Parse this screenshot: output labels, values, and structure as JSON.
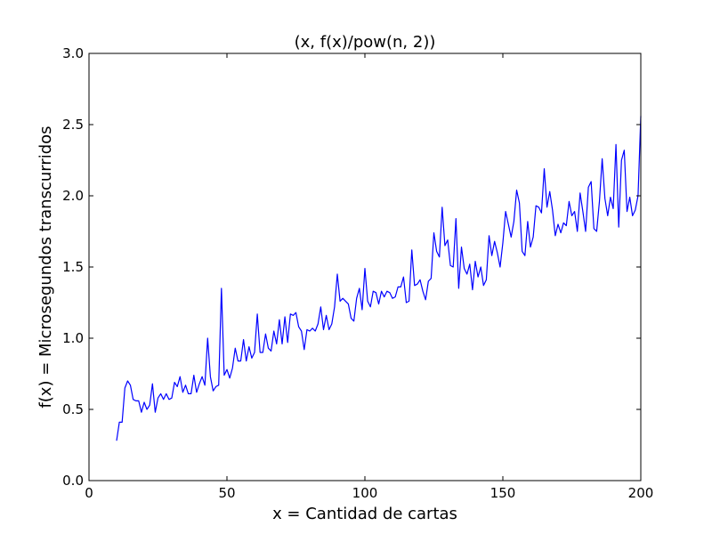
{
  "chart_data": {
    "type": "line",
    "title": "(x, f(x)/pow(n, 2))",
    "xlabel": "x = Cantidad de cartas",
    "ylabel": "f(x) = Microsegundos transcurridos",
    "xlim": [
      0,
      200
    ],
    "ylim": [
      0.0,
      3.0
    ],
    "xticks": [
      0,
      50,
      100,
      150,
      200
    ],
    "xtick_labels": [
      "0",
      "50",
      "100",
      "150",
      "200"
    ],
    "yticks": [
      0.0,
      0.5,
      1.0,
      1.5,
      2.0,
      2.5,
      3.0
    ],
    "ytick_labels": [
      "0.0",
      "0.5",
      "1.0",
      "1.5",
      "2.0",
      "2.5",
      "3.0"
    ],
    "grid": false,
    "legend": "none",
    "series": [
      {
        "color": "#0000ff",
        "x": [
          10,
          11,
          12,
          13,
          14,
          15,
          16,
          17,
          18,
          19,
          20,
          21,
          22,
          23,
          24,
          25,
          26,
          27,
          28,
          29,
          30,
          31,
          32,
          33,
          34,
          35,
          36,
          37,
          38,
          39,
          40,
          41,
          42,
          43,
          44,
          45,
          46,
          47,
          48,
          49,
          50,
          51,
          52,
          53,
          54,
          55,
          56,
          57,
          58,
          59,
          60,
          61,
          62,
          63,
          64,
          65,
          66,
          67,
          68,
          69,
          70,
          71,
          72,
          73,
          74,
          75,
          76,
          77,
          78,
          79,
          80,
          81,
          82,
          83,
          84,
          85,
          86,
          87,
          88,
          89,
          90,
          91,
          92,
          93,
          94,
          95,
          96,
          97,
          98,
          99,
          100,
          101,
          102,
          103,
          104,
          105,
          106,
          107,
          108,
          109,
          110,
          111,
          112,
          113,
          114,
          115,
          116,
          117,
          118,
          119,
          120,
          121,
          122,
          123,
          124,
          125,
          126,
          127,
          128,
          129,
          130,
          131,
          132,
          133,
          134,
          135,
          136,
          137,
          138,
          139,
          140,
          141,
          142,
          143,
          144,
          145,
          146,
          147,
          148,
          149,
          150,
          151,
          152,
          153,
          154,
          155,
          156,
          157,
          158,
          159,
          160,
          161,
          162,
          163,
          164,
          165,
          166,
          167,
          168,
          169,
          170,
          171,
          172,
          173,
          174,
          175,
          176,
          177,
          178,
          179,
          180,
          181,
          182,
          183,
          184,
          185,
          186,
          187,
          188,
          189,
          190,
          191,
          192,
          193,
          194,
          195,
          196,
          197,
          198,
          199,
          200
        ],
        "y": [
          0.28,
          0.41,
          0.41,
          0.65,
          0.7,
          0.67,
          0.57,
          0.56,
          0.56,
          0.48,
          0.55,
          0.5,
          0.53,
          0.68,
          0.48,
          0.58,
          0.61,
          0.57,
          0.61,
          0.57,
          0.58,
          0.69,
          0.66,
          0.73,
          0.62,
          0.67,
          0.61,
          0.61,
          0.74,
          0.62,
          0.68,
          0.73,
          0.67,
          1.0,
          0.73,
          0.63,
          0.66,
          0.67,
          1.35,
          0.74,
          0.78,
          0.72,
          0.79,
          0.93,
          0.84,
          0.84,
          0.99,
          0.84,
          0.94,
          0.86,
          0.9,
          1.17,
          0.9,
          0.9,
          1.03,
          0.93,
          0.91,
          1.05,
          0.96,
          1.13,
          0.96,
          1.15,
          0.97,
          1.17,
          1.16,
          1.18,
          1.08,
          1.05,
          0.92,
          1.06,
          1.05,
          1.07,
          1.05,
          1.1,
          1.22,
          1.06,
          1.16,
          1.06,
          1.1,
          1.22,
          1.45,
          1.26,
          1.28,
          1.26,
          1.24,
          1.14,
          1.12,
          1.28,
          1.35,
          1.2,
          1.49,
          1.26,
          1.22,
          1.33,
          1.32,
          1.24,
          1.33,
          1.29,
          1.33,
          1.32,
          1.28,
          1.29,
          1.36,
          1.36,
          1.43,
          1.25,
          1.26,
          1.62,
          1.37,
          1.38,
          1.41,
          1.33,
          1.27,
          1.4,
          1.42,
          1.74,
          1.61,
          1.57,
          1.92,
          1.65,
          1.69,
          1.51,
          1.5,
          1.84,
          1.35,
          1.64,
          1.49,
          1.45,
          1.52,
          1.34,
          1.54,
          1.43,
          1.5,
          1.37,
          1.41,
          1.72,
          1.58,
          1.68,
          1.6,
          1.5,
          1.67,
          1.89,
          1.8,
          1.71,
          1.82,
          2.04,
          1.95,
          1.61,
          1.58,
          1.82,
          1.64,
          1.71,
          1.93,
          1.92,
          1.88,
          2.19,
          1.92,
          2.03,
          1.9,
          1.72,
          1.8,
          1.74,
          1.81,
          1.79,
          1.96,
          1.86,
          1.89,
          1.75,
          2.02,
          1.89,
          1.75,
          2.06,
          2.1,
          1.77,
          1.75,
          1.96,
          2.26,
          1.98,
          1.86,
          1.99,
          1.91,
          2.36,
          1.78,
          2.25,
          2.32,
          1.89,
          1.99,
          1.86,
          1.9,
          2.0,
          2.56
        ]
      }
    ]
  }
}
